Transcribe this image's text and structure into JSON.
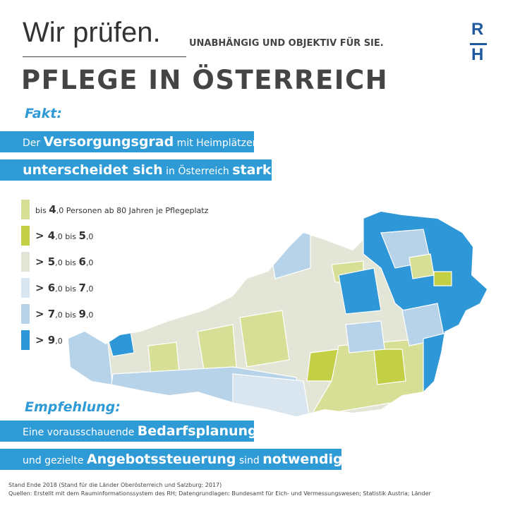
{
  "header": {
    "title": "Wir prüfen.",
    "tagline": "UNABHÄNGIG UND OBJEKTIV FÜR SIE.",
    "headline": "PFLEGE IN ÖSTERREICH",
    "logo": [
      "R",
      "H"
    ]
  },
  "fact": {
    "label": "Fakt:",
    "lines": [
      [
        "Der ",
        "Versorgungsgrad",
        " mit Heimplätzen"
      ],
      [
        "unterscheidet sich",
        " in Österreich ",
        "stark",
        "."
      ]
    ]
  },
  "legend": [
    [
      "bis ",
      "4",
      ",0",
      " Personen ab 80 Jahren je Pflegeplatz"
    ],
    [
      "> 4",
      ",0",
      " bis ",
      "5",
      ",0"
    ],
    [
      "> 5",
      ",0",
      " bis ",
      "6",
      ",0"
    ],
    [
      "> 6",
      ",0",
      " bis ",
      "7",
      ",0"
    ],
    [
      "> 7",
      ",0",
      " bis ",
      "9",
      ",0"
    ],
    [
      "> 9",
      ",0"
    ]
  ],
  "recommendation": {
    "label": "Empfehlung:",
    "lines": [
      [
        "Eine vorausschauende ",
        "Bedarfsplanung"
      ],
      [
        "und gezielte ",
        "Angebotssteuerung",
        " sind ",
        "notwendig",
        "."
      ]
    ]
  },
  "footer": [
    "Stand Ende 2018 (Stand für die Länder Oberösterreich und Salzburg: 2017)",
    "Quellen: Erstellt mit dem Rauminformationssystem des RH; Datengrundlagen: Bundesamt für Eich- und Vermessungswesen; Statistik Austria; Länder"
  ]
}
